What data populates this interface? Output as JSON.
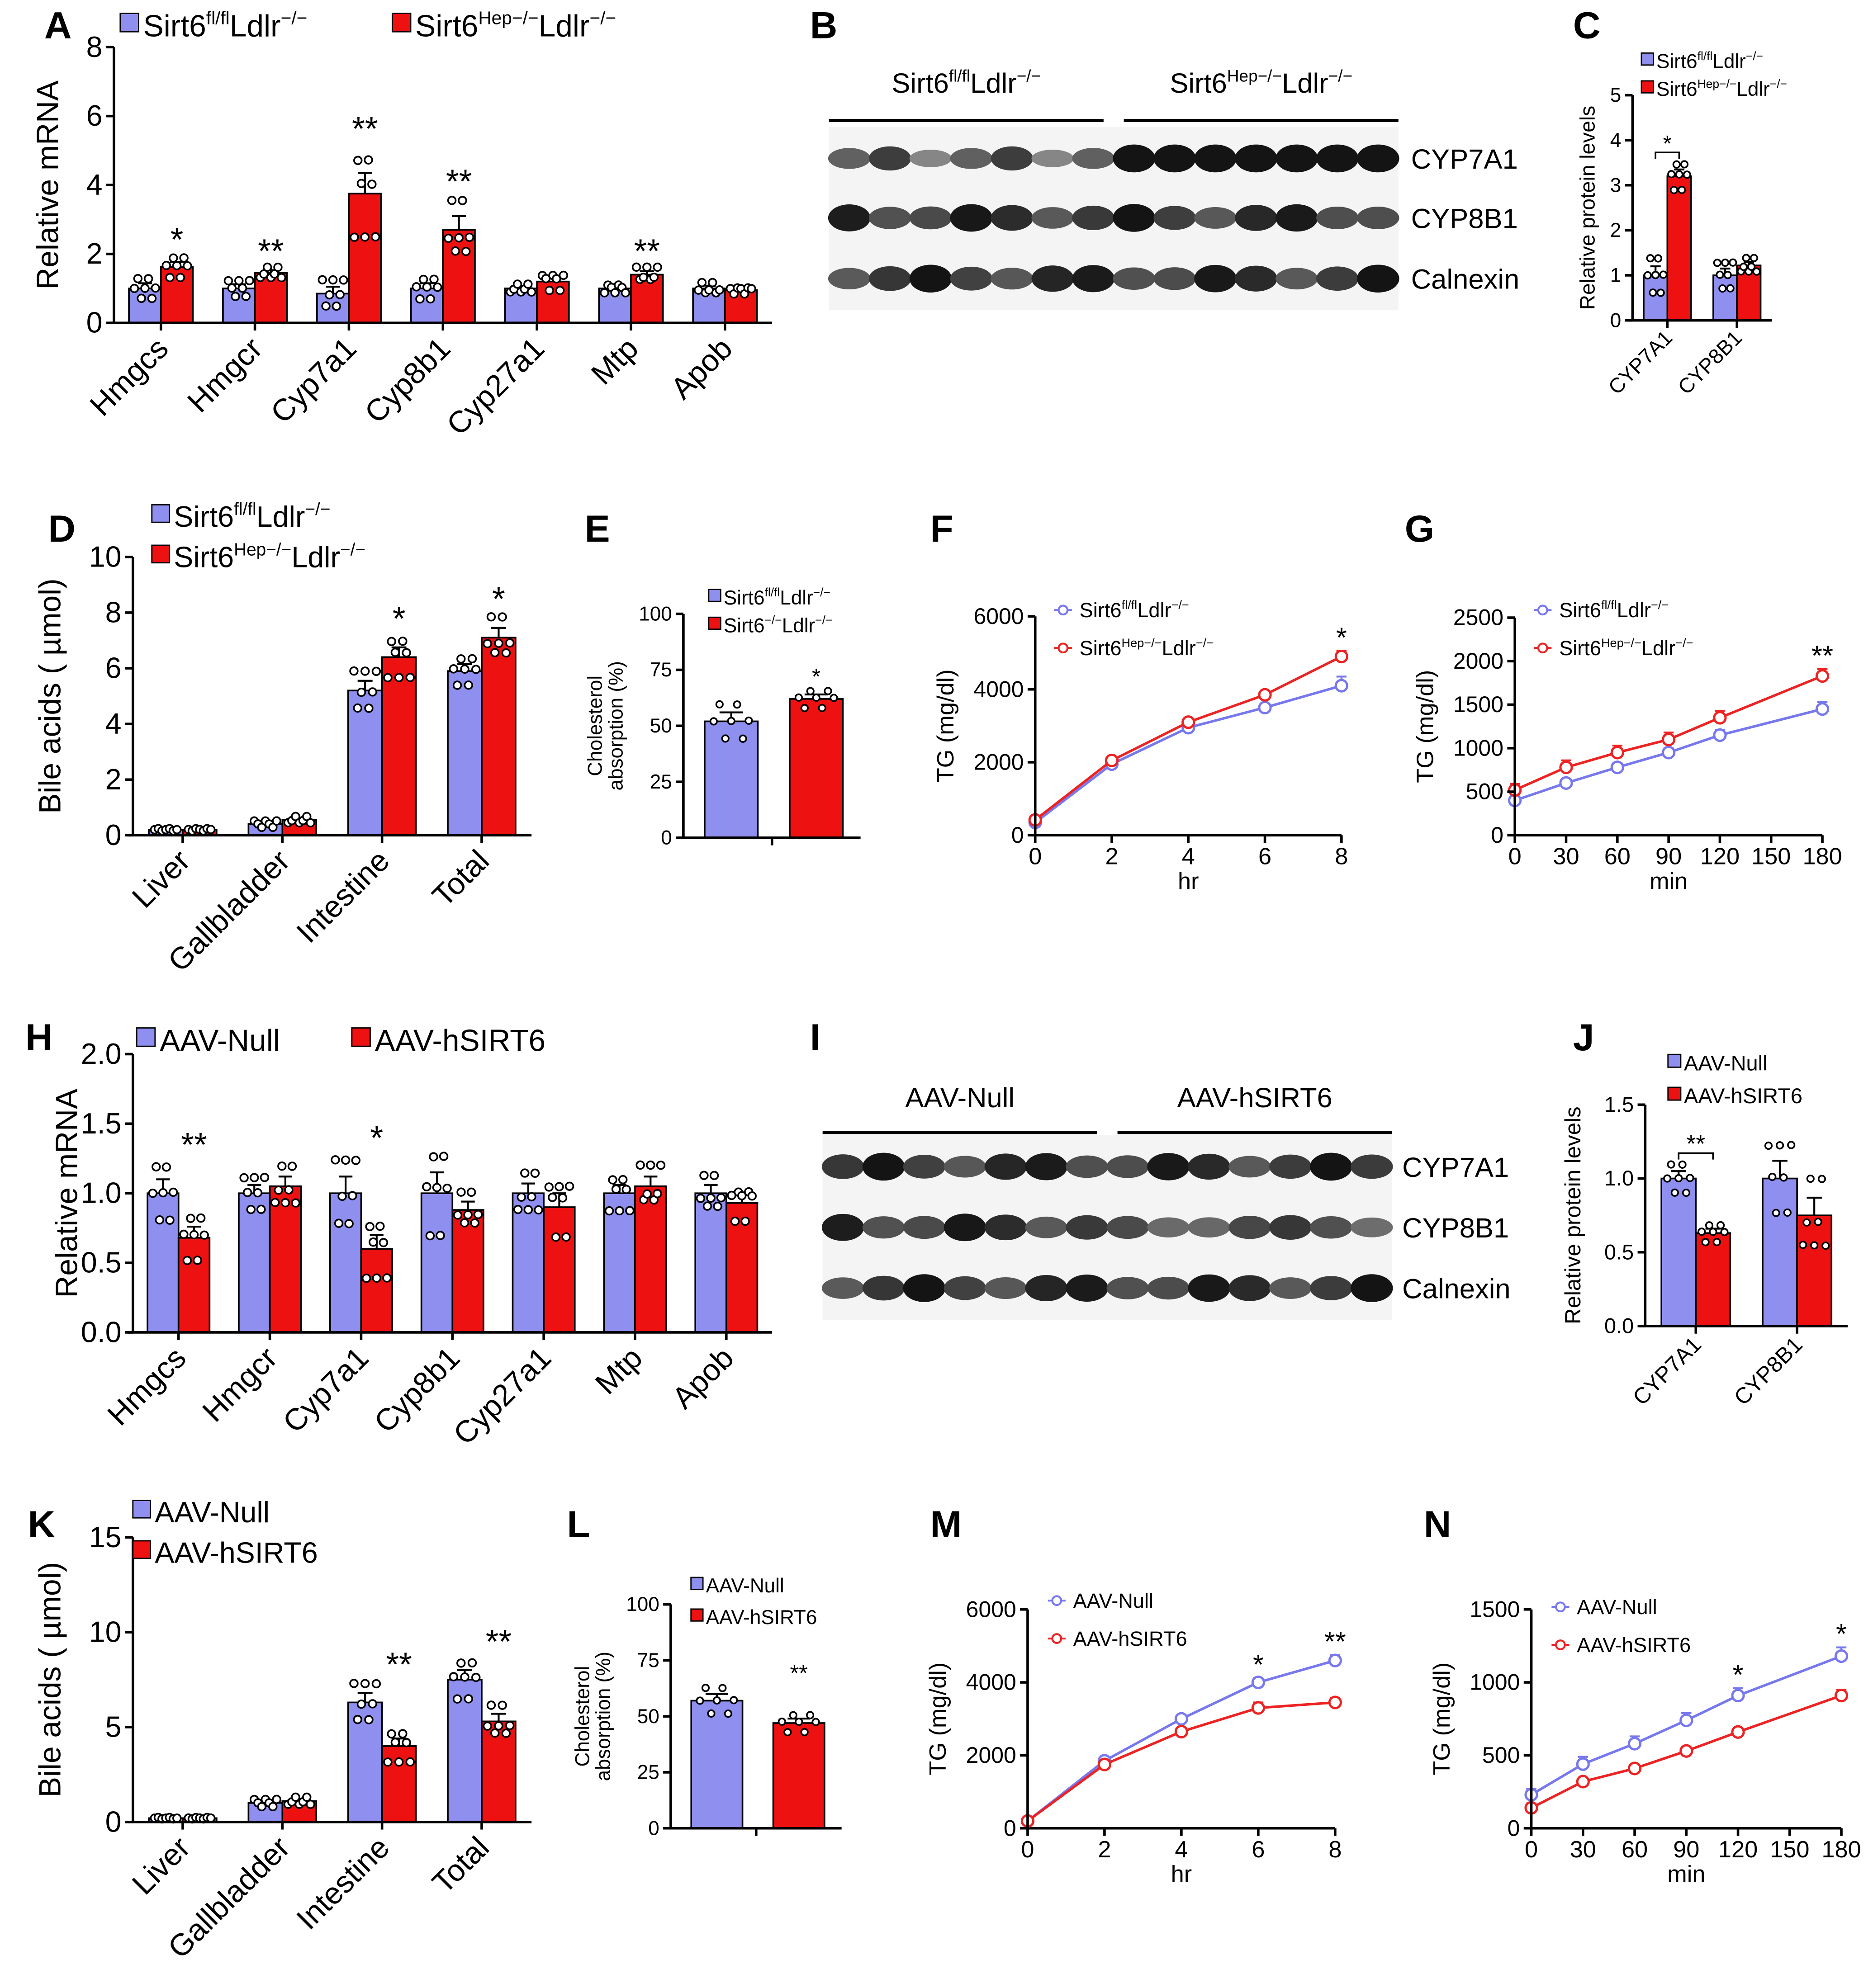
{
  "colors": {
    "control": "#8f8ff0",
    "treated": "#ee1111",
    "control_line": "#7777ee",
    "treated_line": "#ee2222",
    "axis": "#000000"
  },
  "legends": {
    "fl_ldlr": [
      [
        "Sirt6",
        ""
      ],
      [
        "fl/fl",
        "sup"
      ],
      [
        "Ldlr",
        ""
      ],
      [
        "−/−",
        "sup"
      ]
    ],
    "hep_ldlr": [
      [
        "Sirt6",
        ""
      ],
      [
        "Hep−/−",
        "sup"
      ],
      [
        "Ldlr",
        ""
      ],
      [
        "−/−",
        "sup"
      ]
    ],
    "ko_ldlr": [
      [
        "Sirt6",
        ""
      ],
      [
        "−/−",
        "sup"
      ],
      [
        "Ldlr",
        ""
      ],
      [
        "−/−",
        "sup"
      ]
    ],
    "aav_null": [
      [
        "AAV-Null",
        ""
      ]
    ],
    "aav_hsirt6": [
      [
        "AAV-hSIRT6",
        ""
      ]
    ]
  },
  "blots": {
    "B": {
      "letter": "B",
      "groups": [
        "Sirt6fl/fl Ldlr−/−",
        "Sirt6Hep−/− Ldlr−/−"
      ],
      "group_parts": [
        [
          [
            "Sirt6",
            ""
          ],
          [
            "fl/fl",
            "sup"
          ],
          [
            "Ldlr",
            ""
          ],
          [
            "−/−",
            "sup"
          ]
        ],
        [
          [
            "Sirt6",
            ""
          ],
          [
            "Hep−/−",
            "sup"
          ],
          [
            "Ldlr",
            ""
          ],
          [
            "−/−",
            "sup"
          ]
        ]
      ],
      "lanes_per_group": 7,
      "rows": [
        "CYP7A1",
        "CYP8B1",
        "Calnexin"
      ]
    },
    "I": {
      "letter": "I",
      "groups": [
        "AAV-Null",
        "AAV-hSIRT6"
      ],
      "group_parts": [
        [
          [
            "AAV-Null",
            ""
          ]
        ],
        [
          [
            "AAV-hSIRT6",
            ""
          ]
        ]
      ],
      "lanes_per_group": 7,
      "rows": [
        "CYP7A1",
        "CYP8B1",
        "Calnexin"
      ]
    }
  },
  "chart_data": [
    {
      "panel": "A",
      "letter": "A",
      "type": "bar",
      "ylabel": "Relative mRNA",
      "ylim": [
        0,
        8
      ],
      "yticks": [
        0,
        2,
        4,
        6,
        8
      ],
      "categories": [
        "Hmgcs",
        "Hmgcr",
        "Cyp7a1",
        "Cyp8b1",
        "Cyp27a1",
        "Mtp",
        "Apob"
      ],
      "series": [
        {
          "name": "Sirt6fl/fl Ldlr−/−",
          "legend": "fl_ldlr",
          "values": [
            1.0,
            1.0,
            0.85,
            1.0,
            1.0,
            1.0,
            1.0
          ],
          "sem": [
            0.15,
            0.12,
            0.2,
            0.15,
            0.06,
            0.06,
            0.08
          ]
        },
        {
          "name": "Sirt6Hep−/− Ldlr−/−",
          "legend": "hep_ldlr",
          "values": [
            1.62,
            1.45,
            3.75,
            2.7,
            1.2,
            1.4,
            0.95
          ],
          "sem": [
            0.15,
            0.08,
            0.6,
            0.4,
            0.12,
            0.1,
            0.05
          ]
        }
      ],
      "significance": [
        "*",
        "**",
        "**",
        "**",
        "",
        "**",
        ""
      ]
    },
    {
      "panel": "C",
      "letter": "C",
      "type": "bar",
      "ylabel": "Relative protein levels",
      "ylim": [
        0,
        5
      ],
      "yticks": [
        0,
        1,
        2,
        3,
        4,
        5
      ],
      "categories": [
        "CYP7A1",
        "CYP8B1"
      ],
      "series": [
        {
          "name": "Sirt6fl/fl Ldlr−/−",
          "legend": "fl_ldlr",
          "values": [
            1.0,
            1.0
          ],
          "sem": [
            0.2,
            0.15
          ]
        },
        {
          "name": "Sirt6Hep−/− Ldlr−/−",
          "legend": "hep_ldlr",
          "values": [
            3.2,
            1.22
          ],
          "sem": [
            0.15,
            0.08
          ]
        }
      ],
      "significance": [
        "*",
        ""
      ],
      "bracket": [
        true,
        false
      ]
    },
    {
      "panel": "D",
      "letter": "D",
      "type": "bar",
      "ylabel": "Bile acids ( µmol)",
      "ylim": [
        0,
        10
      ],
      "yticks": [
        0,
        2,
        4,
        6,
        8,
        10
      ],
      "categories": [
        "Liver",
        "Gallbladder",
        "Intestine",
        "Total"
      ],
      "series": [
        {
          "name": "Sirt6fl/fl Ldlr−/−",
          "legend": "fl_ldlr",
          "values": [
            0.2,
            0.4,
            5.2,
            5.9
          ],
          "sem": [
            0.02,
            0.06,
            0.35,
            0.25
          ]
        },
        {
          "name": "Sirt6Hep−/− Ldlr−/−",
          "legend": "hep_ldlr",
          "values": [
            0.2,
            0.55,
            6.4,
            7.1
          ],
          "sem": [
            0.02,
            0.06,
            0.35,
            0.35
          ]
        }
      ],
      "significance": [
        "",
        "",
        "*",
        "*"
      ]
    },
    {
      "panel": "E",
      "letter": "E",
      "type": "bar",
      "ylabel": "Cholesterol absorption (%)",
      "ylim": [
        0,
        100
      ],
      "yticks": [
        0,
        25,
        50,
        75,
        100
      ],
      "categories": [
        ""
      ],
      "series": [
        {
          "name": "Sirt6fl/fl Ldlr−/−",
          "legend": "fl_ldlr",
          "values": [
            52
          ],
          "sem": [
            4
          ]
        },
        {
          "name": "Sirt6−/− Ldlr−/−",
          "legend": "ko_ldlr",
          "values": [
            62
          ],
          "sem": [
            2
          ]
        }
      ],
      "significance": [
        "*"
      ]
    },
    {
      "panel": "F",
      "letter": "F",
      "type": "line",
      "ylabel": "TG (mg/dl)",
      "xlabel": "hr",
      "ylim": [
        0,
        6000
      ],
      "yticks": [
        0,
        2000,
        4000,
        6000
      ],
      "xlim": [
        0,
        8
      ],
      "xticks": [
        0,
        2,
        4,
        6,
        8
      ],
      "x": [
        0,
        2,
        4,
        6,
        8
      ],
      "series": [
        {
          "name": "Sirt6fl/fl Ldlr−/−",
          "legend": "fl_ldlr",
          "values": [
            350,
            1950,
            2950,
            3500,
            4100
          ],
          "sem": [
            60,
            80,
            80,
            100,
            250
          ]
        },
        {
          "name": "Sirt6Hep−/− Ldlr−/−",
          "legend": "hep_ldlr",
          "values": [
            420,
            2050,
            3100,
            3850,
            4900
          ],
          "sem": [
            60,
            80,
            100,
            80,
            150
          ]
        }
      ],
      "significance": [
        "",
        "",
        "",
        "",
        "*"
      ]
    },
    {
      "panel": "G",
      "letter": "G",
      "type": "line",
      "ylabel": "TG (mg/dl)",
      "xlabel": "min",
      "ylim": [
        0,
        2500
      ],
      "yticks": [
        0,
        500,
        1000,
        1500,
        2000,
        2500
      ],
      "xlim": [
        0,
        180
      ],
      "xticks": [
        0,
        30,
        60,
        90,
        120,
        150,
        180
      ],
      "x": [
        0,
        30,
        60,
        90,
        120,
        180
      ],
      "series": [
        {
          "name": "Sirt6fl/fl Ldlr−/−",
          "legend": "fl_ldlr",
          "values": [
            400,
            600,
            780,
            950,
            1150,
            1450
          ],
          "sem": [
            30,
            40,
            50,
            50,
            60,
            80
          ]
        },
        {
          "name": "Sirt6Hep−/− Ldlr−/−",
          "legend": "hep_ldlr",
          "values": [
            520,
            780,
            950,
            1100,
            1350,
            1830
          ],
          "sem": [
            70,
            80,
            80,
            80,
            80,
            80
          ]
        }
      ],
      "significance": [
        "",
        "",
        "",
        "",
        "",
        "**"
      ]
    },
    {
      "panel": "H",
      "letter": "H",
      "type": "bar",
      "ylabel": "Relative mRNA",
      "ylim": [
        0,
        2.0
      ],
      "yticks": [
        0.0,
        0.5,
        1.0,
        1.5,
        2.0
      ],
      "decimals": 1,
      "categories": [
        "Hmgcs",
        "Hmgcr",
        "Cyp7a1",
        "Cyp8b1",
        "Cyp27a1",
        "Mtp",
        "Apob"
      ],
      "series": [
        {
          "name": "AAV-Null",
          "legend": "aav_null",
          "values": [
            1.0,
            1.0,
            1.0,
            1.0,
            1.0,
            1.0,
            1.0
          ],
          "sem": [
            0.1,
            0.06,
            0.12,
            0.15,
            0.07,
            0.06,
            0.06
          ]
        },
        {
          "name": "AAV-hSIRT6",
          "legend": "aav_hsirt6",
          "values": [
            0.68,
            1.05,
            0.6,
            0.88,
            0.9,
            1.05,
            0.93
          ],
          "sem": [
            0.08,
            0.07,
            0.1,
            0.06,
            0.1,
            0.07,
            0.06
          ]
        }
      ],
      "significance": [
        "**",
        "",
        "*",
        "",
        "",
        "",
        ""
      ]
    },
    {
      "panel": "J",
      "letter": "J",
      "type": "bar",
      "ylabel": "Relative protein levels",
      "ylim": [
        0,
        1.5
      ],
      "yticks": [
        0.0,
        0.5,
        1.0,
        1.5
      ],
      "decimals": 1,
      "categories": [
        "CYP7A1",
        "CYP8B1"
      ],
      "series": [
        {
          "name": "AAV-Null",
          "legend": "aav_null",
          "values": [
            1.0,
            1.0
          ],
          "sem": [
            0.05,
            0.12
          ]
        },
        {
          "name": "AAV-hSIRT6",
          "legend": "aav_hsirt6",
          "values": [
            0.63,
            0.75
          ],
          "sem": [
            0.03,
            0.12
          ]
        }
      ],
      "significance": [
        "**",
        ""
      ],
      "bracket": [
        true,
        false
      ]
    },
    {
      "panel": "K",
      "letter": "K",
      "type": "bar",
      "ylabel": "Bile acids ( µmol)",
      "ylim": [
        0,
        15
      ],
      "yticks": [
        0,
        5,
        10,
        15
      ],
      "categories": [
        "Liver",
        "Gallbladder",
        "Intestine",
        "Total"
      ],
      "series": [
        {
          "name": "AAV-Null",
          "legend": "aav_null",
          "values": [
            0.2,
            1.0,
            6.3,
            7.5
          ],
          "sem": [
            0.02,
            0.1,
            0.5,
            0.5
          ]
        },
        {
          "name": "AAV-hSIRT6",
          "legend": "aav_hsirt6",
          "values": [
            0.2,
            1.1,
            4.0,
            5.3
          ],
          "sem": [
            0.02,
            0.1,
            0.4,
            0.4
          ]
        }
      ],
      "significance": [
        "",
        "",
        "**",
        "**"
      ]
    },
    {
      "panel": "L",
      "letter": "L",
      "type": "bar",
      "ylabel": "Cholesterol absorption (%)",
      "ylim": [
        0,
        100
      ],
      "yticks": [
        0,
        25,
        50,
        75,
        100
      ],
      "categories": [
        ""
      ],
      "series": [
        {
          "name": "AAV-Null",
          "legend": "aav_null",
          "values": [
            57
          ],
          "sem": [
            3
          ]
        },
        {
          "name": "AAV-hSIRT6",
          "legend": "aav_hsirt6",
          "values": [
            47
          ],
          "sem": [
            2
          ]
        }
      ],
      "significance": [
        "**"
      ]
    },
    {
      "panel": "M",
      "letter": "M",
      "type": "line",
      "ylabel": "TG (mg/dl)",
      "xlabel": "hr",
      "ylim": [
        0,
        6000
      ],
      "yticks": [
        0,
        2000,
        4000,
        6000
      ],
      "xlim": [
        0,
        8
      ],
      "xticks": [
        0,
        2,
        4,
        6,
        8
      ],
      "x": [
        0,
        2,
        4,
        6,
        8
      ],
      "series": [
        {
          "name": "AAV-Null",
          "legend": "aav_null",
          "values": [
            200,
            1850,
            3000,
            4000,
            4600
          ],
          "sem": [
            40,
            80,
            100,
            120,
            150
          ]
        },
        {
          "name": "AAV-hSIRT6",
          "legend": "aav_hsirt6",
          "values": [
            200,
            1750,
            2650,
            3300,
            3450
          ],
          "sem": [
            40,
            60,
            80,
            150,
            120
          ]
        }
      ],
      "significance": [
        "",
        "",
        "",
        "*",
        "**"
      ]
    },
    {
      "panel": "N",
      "letter": "N",
      "type": "line",
      "ylabel": "TG (mg/dl)",
      "xlabel": "min",
      "ylim": [
        0,
        1500
      ],
      "yticks": [
        0,
        500,
        1000,
        1500
      ],
      "xlim": [
        0,
        180
      ],
      "xticks": [
        0,
        30,
        60,
        90,
        120,
        150,
        180
      ],
      "x": [
        0,
        30,
        60,
        90,
        120,
        180
      ],
      "series": [
        {
          "name": "AAV-Null",
          "legend": "aav_null",
          "values": [
            230,
            440,
            580,
            740,
            910,
            1180
          ],
          "sem": [
            40,
            50,
            50,
            50,
            50,
            60
          ]
        },
        {
          "name": "AAV-hSIRT6",
          "legend": "aav_hsirt6",
          "values": [
            140,
            320,
            410,
            530,
            660,
            910
          ],
          "sem": [
            30,
            20,
            20,
            20,
            20,
            40
          ]
        }
      ],
      "significance": [
        "",
        "",
        "",
        "",
        "*",
        "*"
      ]
    }
  ]
}
